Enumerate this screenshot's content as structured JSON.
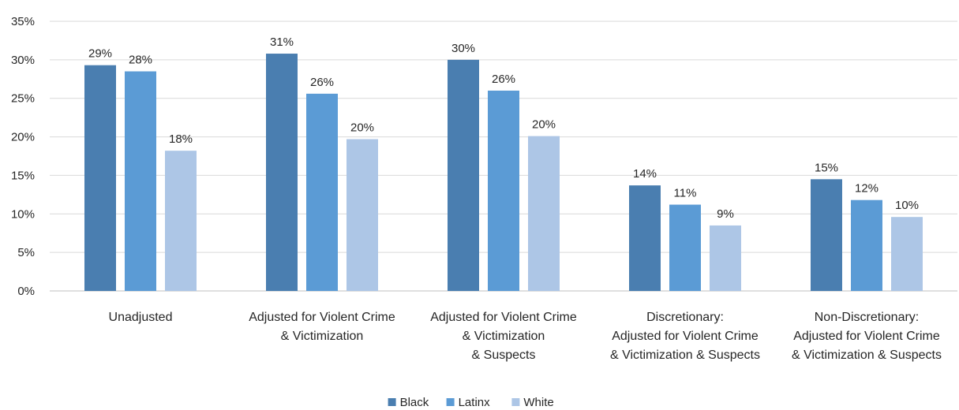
{
  "chart_data": {
    "type": "bar",
    "categories": [
      [
        "Unadjusted"
      ],
      [
        "Adjusted for Violent Crime",
        "& Victimization"
      ],
      [
        "Adjusted for Violent Crime",
        "& Victimization",
        "& Suspects"
      ],
      [
        "Discretionary:",
        "Adjusted for Violent Crime",
        "& Victimization & Suspects"
      ],
      [
        "Non-Discretionary:",
        "Adjusted for Violent Crime",
        "& Victimization & Suspects"
      ]
    ],
    "series": [
      {
        "name": "Black",
        "color": "#4a7eb0",
        "values": [
          29.3,
          30.8,
          30.0,
          13.7,
          14.5
        ],
        "labels": [
          "29%",
          "31%",
          "30%",
          "14%",
          "15%"
        ]
      },
      {
        "name": "Latinx",
        "color": "#5b9bd5",
        "values": [
          28.5,
          25.6,
          26.0,
          11.2,
          11.8
        ],
        "labels": [
          "28%",
          "26%",
          "26%",
          "11%",
          "12%"
        ]
      },
      {
        "name": "White",
        "color": "#adc6e6",
        "values": [
          18.2,
          19.7,
          20.1,
          8.5,
          9.6
        ],
        "labels": [
          "18%",
          "20%",
          "20%",
          "9%",
          "10%"
        ]
      }
    ],
    "yticks": [
      "0%",
      "5%",
      "10%",
      "15%",
      "20%",
      "25%",
      "30%",
      "35%"
    ],
    "ylim": [
      0,
      35
    ],
    "grid": true,
    "legend": "bottom-center",
    "title": "",
    "xlabel": "",
    "ylabel": ""
  }
}
